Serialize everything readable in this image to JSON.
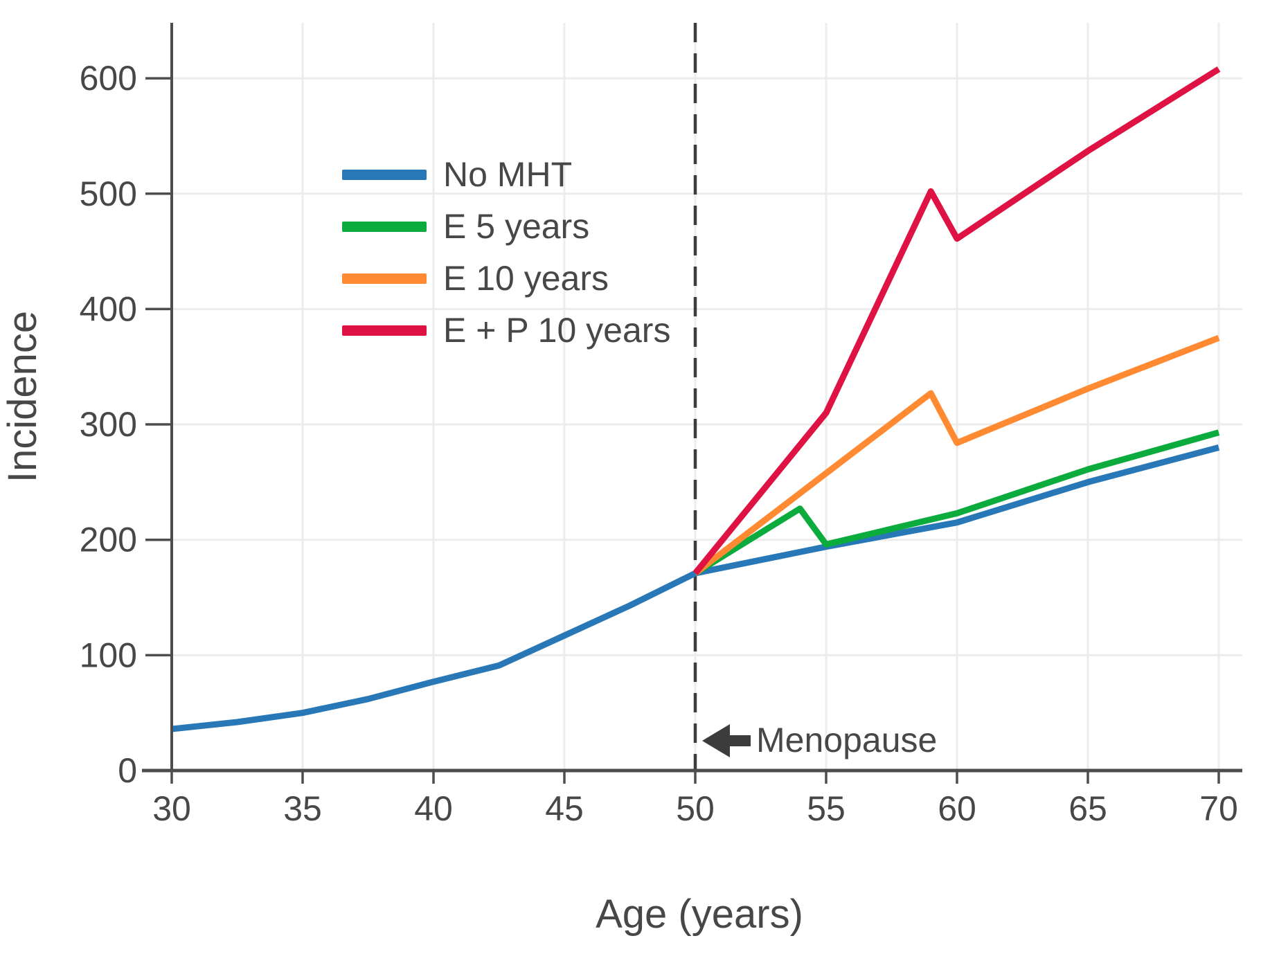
{
  "figure": {
    "background": "#ffffff",
    "text_color": "#474747",
    "axis_color": "#4d4d4d",
    "gridline_color": "#ececec",
    "dashed_line_color": "#3c3c3c"
  },
  "chart_data": {
    "type": "line",
    "title": "",
    "xlabel": "Age (years)",
    "ylabel": "Incidence",
    "xlim": [
      30,
      71
    ],
    "ylim": [
      0,
      648
    ],
    "x_ticks": [
      30,
      35,
      40,
      45,
      50,
      55,
      60,
      65,
      70
    ],
    "y_ticks": [
      0,
      100,
      200,
      300,
      400,
      500,
      600
    ],
    "grid": true,
    "legend_position": "upper-left-inside",
    "vline": {
      "x": 50,
      "style": "dashed"
    },
    "annotation": {
      "label": "Menopause",
      "x": 50,
      "y": 26,
      "arrow": "left"
    },
    "series": [
      {
        "name": "No MHT",
        "color": "#2878B8",
        "points": [
          [
            30,
            36
          ],
          [
            32.5,
            42
          ],
          [
            35,
            50
          ],
          [
            37.5,
            62
          ],
          [
            40,
            77
          ],
          [
            42.5,
            91
          ],
          [
            45,
            117
          ],
          [
            47.5,
            143
          ],
          [
            50,
            171
          ],
          [
            55,
            194
          ],
          [
            60,
            215
          ],
          [
            65,
            250
          ],
          [
            70,
            280
          ]
        ]
      },
      {
        "name": "E 5 years",
        "color": "#0BAC3D",
        "points": [
          [
            50,
            171
          ],
          [
            54,
            227
          ],
          [
            55,
            196
          ],
          [
            60,
            223
          ],
          [
            65,
            261
          ],
          [
            70,
            293
          ]
        ]
      },
      {
        "name": "E 10 years",
        "color": "#FF8A32",
        "points": [
          [
            50,
            171
          ],
          [
            59,
            327
          ],
          [
            60,
            284
          ],
          [
            65,
            331
          ],
          [
            70,
            375
          ]
        ]
      },
      {
        "name": "E + P 10 years",
        "color": "#DE1343",
        "points": [
          [
            50,
            171
          ],
          [
            55,
            310
          ],
          [
            59,
            502
          ],
          [
            60,
            461
          ],
          [
            65,
            537
          ],
          [
            70,
            608
          ]
        ]
      }
    ]
  }
}
